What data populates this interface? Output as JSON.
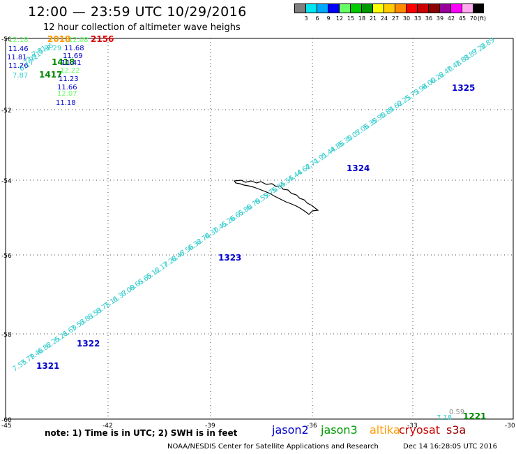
{
  "header": {
    "title": "12:00 — 23:59 UTC 10/29/2016",
    "subtitle": "12 hour collection of altimeter wave heighs"
  },
  "legend": {
    "labels": [
      "3",
      "6",
      "9",
      "12",
      "15",
      "18",
      "21",
      "24",
      "27",
      "30",
      "33",
      "36",
      "39",
      "42",
      "45",
      "70"
    ],
    "unit": "(ft)",
    "colors": [
      "#7f7f7f",
      "#00e5ee",
      "#00a8ff",
      "#0000ff",
      "#66ff66",
      "#00cc00",
      "#009900",
      "#ffff00",
      "#ffcc00",
      "#ff8c00",
      "#ff0000",
      "#cc0000",
      "#8b0000",
      "#990099",
      "#ff00ff",
      "#ffaaee",
      "#000000"
    ]
  },
  "axes": {
    "lat_labels": [
      "-50",
      "-52",
      "-54",
      "-56",
      "-58",
      "-60"
    ],
    "lon_labels": [
      "-45",
      "-42",
      "-39",
      "-36",
      "-33",
      "-30"
    ]
  },
  "track_colors": {
    "low": "#33cccc",
    "mid": "#66ff66",
    "blue": "#0000cc",
    "green": "#008800",
    "orange": "#ff9900",
    "red": "#dd0000",
    "grey": "#888888"
  },
  "passes": [
    {
      "label": "1321",
      "color": "#0000cc"
    },
    {
      "label": "1322",
      "color": "#0000cc"
    },
    {
      "label": "1323",
      "color": "#0000cc"
    },
    {
      "label": "1324",
      "color": "#0000cc"
    },
    {
      "label": "1325",
      "color": "#0000cc"
    },
    {
      "label": "1221",
      "color": "#008800"
    },
    {
      "label": "1417",
      "color": "#008800"
    },
    {
      "label": "1418",
      "color": "#008800"
    },
    {
      "label": "2018",
      "color": "#ff9900"
    },
    {
      "label": "2156",
      "color": "#dd0000"
    }
  ],
  "main_track": [
    "7.55",
    "7.79",
    "7.46",
    "6.82",
    "6.25",
    "6.21",
    "6.69",
    "7.53",
    "6.83",
    "6.53",
    "6.75",
    "7.11",
    "6.37",
    "6.09",
    "6.65",
    "6.65",
    "6.12",
    "6.17",
    "7.28",
    "6.47",
    "6.56",
    "6.32",
    "6.74",
    "6.30",
    "7.45",
    "6.26",
    "6.65",
    "6.80",
    "6.79",
    "6.59",
    "5.76",
    "5.85",
    "4.55",
    "4.44",
    "4.62",
    "4.71",
    "4.91",
    "5.44",
    "4.86",
    "5.30",
    "5.07",
    "5.06",
    "5.30",
    "5.90",
    "5.84",
    "5.62",
    "6.25",
    "5.73",
    "5.94",
    "6.00",
    "6.22",
    "6.40",
    "7.48",
    "7.83",
    "8.87",
    "9.22",
    "8.89"
  ],
  "left_cluster": {
    "col1": [
      "12.18",
      "11.46",
      "11.81",
      "11.26",
      "7.87"
    ],
    "col2": [
      "5.96",
      "7.91",
      "7.91",
      "6.17",
      "7.01"
    ],
    "col3": [
      "6.29",
      "11.68",
      "11.69",
      "11.41",
      "11.23",
      "11.66",
      "11.18"
    ],
    "mid_vals": [
      "12.08",
      "12.22",
      "12.07"
    ]
  },
  "bottom_right": {
    "grey_val": "0.59",
    "light_val": "7.18"
  },
  "note": "note: 1) Time is in UTC; 2) SWH is in feet",
  "satellites": [
    {
      "name": "jason2",
      "color": "#0000cc"
    },
    {
      "name": "jason3",
      "color": "#009900"
    },
    {
      "name": "altika",
      "color": "#ff9900"
    },
    {
      "name": "cryosat",
      "color": "#cc0000"
    },
    {
      "name": "s3a",
      "color": "#990000"
    }
  ],
  "footer": {
    "credit": "NOAA/NESDIS Center for Satellite Applications and Research",
    "timestamp": "Dec 14 16:28:05 UTC 2016"
  }
}
